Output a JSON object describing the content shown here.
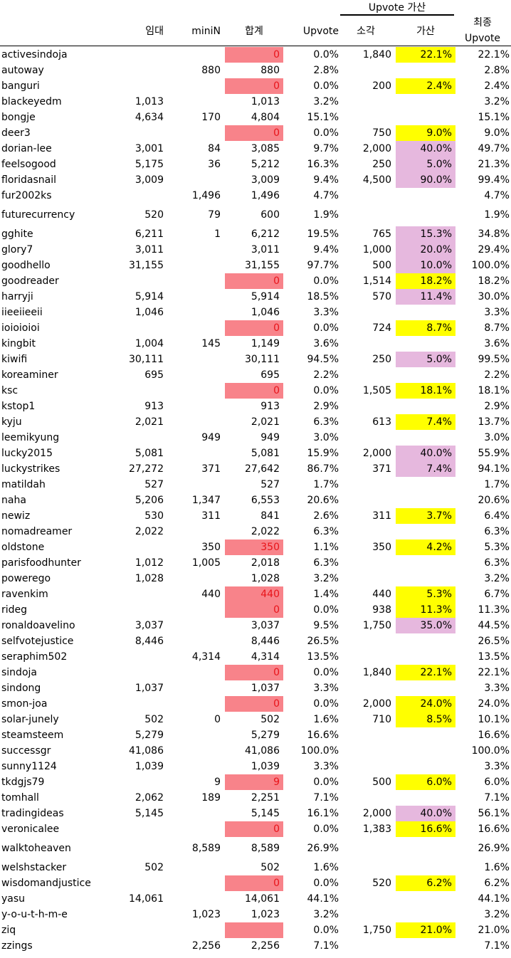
{
  "header": {
    "group_label": "Upvote 가산",
    "columns": {
      "imdae": "임대",
      "minin": "miniN",
      "total": "합계",
      "upvote": "Upvote",
      "sogak": "소각",
      "gasan": "가산",
      "final_line1": "최종",
      "final_line2": "Upvote"
    }
  },
  "colors": {
    "pink": "#f8838a",
    "pink_text": "#e8141a",
    "yellow": "#ffff00",
    "lavender": "#e6b8de"
  },
  "rows": [
    {
      "name": "activesindoja",
      "imdae": "",
      "minin": "",
      "total": "0",
      "upvote": "0.0%",
      "sogak": "1,840",
      "gasan": "22.1%",
      "final": "22.1%",
      "total_hl": "pink",
      "gasan_hl": "yellow"
    },
    {
      "name": "autoway",
      "imdae": "",
      "minin": "880",
      "total": "880",
      "upvote": "2.8%",
      "sogak": "",
      "gasan": "",
      "final": "2.8%",
      "total_hl": "",
      "gasan_hl": ""
    },
    {
      "name": "banguri",
      "imdae": "",
      "minin": "",
      "total": "0",
      "upvote": "0.0%",
      "sogak": "200",
      "gasan": "2.4%",
      "final": "2.4%",
      "total_hl": "pink",
      "gasan_hl": "yellow"
    },
    {
      "name": "blackeyedm",
      "imdae": "1,013",
      "minin": "",
      "total": "1,013",
      "upvote": "3.2%",
      "sogak": "",
      "gasan": "",
      "final": "3.2%",
      "total_hl": "",
      "gasan_hl": ""
    },
    {
      "name": "bongje",
      "imdae": "4,634",
      "minin": "170",
      "total": "4,804",
      "upvote": "15.1%",
      "sogak": "",
      "gasan": "",
      "final": "15.1%",
      "total_hl": "",
      "gasan_hl": ""
    },
    {
      "name": "deer3",
      "imdae": "",
      "minin": "",
      "total": "0",
      "upvote": "0.0%",
      "sogak": "750",
      "gasan": "9.0%",
      "final": "9.0%",
      "total_hl": "pink",
      "gasan_hl": "yellow"
    },
    {
      "name": "dorian-lee",
      "imdae": "3,001",
      "minin": "84",
      "total": "3,085",
      "upvote": "9.7%",
      "sogak": "2,000",
      "gasan": "40.0%",
      "final": "49.7%",
      "total_hl": "",
      "gasan_hl": "lavender"
    },
    {
      "name": "feelsogood",
      "imdae": "5,175",
      "minin": "36",
      "total": "5,212",
      "upvote": "16.3%",
      "sogak": "250",
      "gasan": "5.0%",
      "final": "21.3%",
      "total_hl": "",
      "gasan_hl": "lavender"
    },
    {
      "name": "floridasnail",
      "imdae": "3,009",
      "minin": "",
      "total": "3,009",
      "upvote": "9.4%",
      "sogak": "4,500",
      "gasan": "90.0%",
      "final": "99.4%",
      "total_hl": "",
      "gasan_hl": "lavender"
    },
    {
      "name": "fur2002ks",
      "imdae": "",
      "minin": "1,496",
      "total": "1,496",
      "upvote": "4.7%",
      "sogak": "",
      "gasan": "",
      "final": "4.7%",
      "total_hl": "",
      "gasan_hl": ""
    },
    {
      "name": "futurecurrency",
      "imdae": "520",
      "minin": "79",
      "total": "600",
      "upvote": "1.9%",
      "sogak": "",
      "gasan": "",
      "final": "1.9%",
      "total_hl": "",
      "gasan_hl": ""
    },
    {
      "name": "gghite",
      "imdae": "6,211",
      "minin": "1",
      "total": "6,212",
      "upvote": "19.5%",
      "sogak": "765",
      "gasan": "15.3%",
      "final": "34.8%",
      "total_hl": "",
      "gasan_hl": "lavender"
    },
    {
      "name": "glory7",
      "imdae": "3,011",
      "minin": "",
      "total": "3,011",
      "upvote": "9.4%",
      "sogak": "1,000",
      "gasan": "20.0%",
      "final": "29.4%",
      "total_hl": "",
      "gasan_hl": "lavender"
    },
    {
      "name": "goodhello",
      "imdae": "31,155",
      "minin": "",
      "total": "31,155",
      "upvote": "97.7%",
      "sogak": "500",
      "gasan": "10.0%",
      "final": "100.0%",
      "total_hl": "",
      "gasan_hl": "lavender"
    },
    {
      "name": "goodreader",
      "imdae": "",
      "minin": "",
      "total": "0",
      "upvote": "0.0%",
      "sogak": "1,514",
      "gasan": "18.2%",
      "final": "18.2%",
      "total_hl": "pink",
      "gasan_hl": "yellow"
    },
    {
      "name": "harryji",
      "imdae": "5,914",
      "minin": "",
      "total": "5,914",
      "upvote": "18.5%",
      "sogak": "570",
      "gasan": "11.4%",
      "final": "30.0%",
      "total_hl": "",
      "gasan_hl": "lavender"
    },
    {
      "name": "iieeiieeii",
      "imdae": "1,046",
      "minin": "",
      "total": "1,046",
      "upvote": "3.3%",
      "sogak": "",
      "gasan": "",
      "final": "3.3%",
      "total_hl": "",
      "gasan_hl": ""
    },
    {
      "name": "ioioioioi",
      "imdae": "",
      "minin": "",
      "total": "0",
      "upvote": "0.0%",
      "sogak": "724",
      "gasan": "8.7%",
      "final": "8.7%",
      "total_hl": "pink",
      "gasan_hl": "yellow"
    },
    {
      "name": "kingbit",
      "imdae": "1,004",
      "minin": "145",
      "total": "1,149",
      "upvote": "3.6%",
      "sogak": "",
      "gasan": "",
      "final": "3.6%",
      "total_hl": "",
      "gasan_hl": ""
    },
    {
      "name": "kiwifi",
      "imdae": "30,111",
      "minin": "",
      "total": "30,111",
      "upvote": "94.5%",
      "sogak": "250",
      "gasan": "5.0%",
      "final": "99.5%",
      "total_hl": "",
      "gasan_hl": "lavender"
    },
    {
      "name": "koreaminer",
      "imdae": "695",
      "minin": "",
      "total": "695",
      "upvote": "2.2%",
      "sogak": "",
      "gasan": "",
      "final": "2.2%",
      "total_hl": "",
      "gasan_hl": ""
    },
    {
      "name": "ksc",
      "imdae": "",
      "minin": "",
      "total": "0",
      "upvote": "0.0%",
      "sogak": "1,505",
      "gasan": "18.1%",
      "final": "18.1%",
      "total_hl": "pink",
      "gasan_hl": "yellow"
    },
    {
      "name": "kstop1",
      "imdae": "913",
      "minin": "",
      "total": "913",
      "upvote": "2.9%",
      "sogak": "",
      "gasan": "",
      "final": "2.9%",
      "total_hl": "",
      "gasan_hl": ""
    },
    {
      "name": "kyju",
      "imdae": "2,021",
      "minin": "",
      "total": "2,021",
      "upvote": "6.3%",
      "sogak": "613",
      "gasan": "7.4%",
      "final": "13.7%",
      "total_hl": "",
      "gasan_hl": "yellow"
    },
    {
      "name": "leemikyung",
      "imdae": "",
      "minin": "949",
      "total": "949",
      "upvote": "3.0%",
      "sogak": "",
      "gasan": "",
      "final": "3.0%",
      "total_hl": "",
      "gasan_hl": ""
    },
    {
      "name": "lucky2015",
      "imdae": "5,081",
      "minin": "",
      "total": "5,081",
      "upvote": "15.9%",
      "sogak": "2,000",
      "gasan": "40.0%",
      "final": "55.9%",
      "total_hl": "",
      "gasan_hl": "lavender"
    },
    {
      "name": "luckystrikes",
      "imdae": "27,272",
      "minin": "371",
      "total": "27,642",
      "upvote": "86.7%",
      "sogak": "371",
      "gasan": "7.4%",
      "final": "94.1%",
      "total_hl": "",
      "gasan_hl": "lavender"
    },
    {
      "name": "matildah",
      "imdae": "527",
      "minin": "",
      "total": "527",
      "upvote": "1.7%",
      "sogak": "",
      "gasan": "",
      "final": "1.7%",
      "total_hl": "",
      "gasan_hl": ""
    },
    {
      "name": "naha",
      "imdae": "5,206",
      "minin": "1,347",
      "total": "6,553",
      "upvote": "20.6%",
      "sogak": "",
      "gasan": "",
      "final": "20.6%",
      "total_hl": "",
      "gasan_hl": ""
    },
    {
      "name": "newiz",
      "imdae": "530",
      "minin": "311",
      "total": "841",
      "upvote": "2.6%",
      "sogak": "311",
      "gasan": "3.7%",
      "final": "6.4%",
      "total_hl": "",
      "gasan_hl": "yellow"
    },
    {
      "name": "nomadreamer",
      "imdae": "2,022",
      "minin": "",
      "total": "2,022",
      "upvote": "6.3%",
      "sogak": "",
      "gasan": "",
      "final": "6.3%",
      "total_hl": "",
      "gasan_hl": ""
    },
    {
      "name": "oldstone",
      "imdae": "",
      "minin": "350",
      "total": "350",
      "upvote": "1.1%",
      "sogak": "350",
      "gasan": "4.2%",
      "final": "5.3%",
      "total_hl": "pink",
      "gasan_hl": "yellow"
    },
    {
      "name": "parisfoodhunter",
      "imdae": "1,012",
      "minin": "1,005",
      "total": "2,018",
      "upvote": "6.3%",
      "sogak": "",
      "gasan": "",
      "final": "6.3%",
      "total_hl": "",
      "gasan_hl": ""
    },
    {
      "name": "powerego",
      "imdae": "1,028",
      "minin": "",
      "total": "1,028",
      "upvote": "3.2%",
      "sogak": "",
      "gasan": "",
      "final": "3.2%",
      "total_hl": "",
      "gasan_hl": ""
    },
    {
      "name": "ravenkim",
      "imdae": "",
      "minin": "440",
      "total": "440",
      "upvote": "1.4%",
      "sogak": "440",
      "gasan": "5.3%",
      "final": "6.7%",
      "total_hl": "pink",
      "gasan_hl": "yellow"
    },
    {
      "name": "rideg",
      "imdae": "",
      "minin": "",
      "total": "0",
      "upvote": "0.0%",
      "sogak": "938",
      "gasan": "11.3%",
      "final": "11.3%",
      "total_hl": "pink",
      "gasan_hl": "yellow"
    },
    {
      "name": "ronaldoavelino",
      "imdae": "3,037",
      "minin": "",
      "total": "3,037",
      "upvote": "9.5%",
      "sogak": "1,750",
      "gasan": "35.0%",
      "final": "44.5%",
      "total_hl": "",
      "gasan_hl": "lavender"
    },
    {
      "name": "selfvotejustice",
      "imdae": "8,446",
      "minin": "",
      "total": "8,446",
      "upvote": "26.5%",
      "sogak": "",
      "gasan": "",
      "final": "26.5%",
      "total_hl": "",
      "gasan_hl": ""
    },
    {
      "name": "seraphim502",
      "imdae": "",
      "minin": "4,314",
      "total": "4,314",
      "upvote": "13.5%",
      "sogak": "",
      "gasan": "",
      "final": "13.5%",
      "total_hl": "",
      "gasan_hl": ""
    },
    {
      "name": "sindoja",
      "imdae": "",
      "minin": "",
      "total": "0",
      "upvote": "0.0%",
      "sogak": "1,840",
      "gasan": "22.1%",
      "final": "22.1%",
      "total_hl": "pink",
      "gasan_hl": "yellow"
    },
    {
      "name": "sindong",
      "imdae": "1,037",
      "minin": "",
      "total": "1,037",
      "upvote": "3.3%",
      "sogak": "",
      "gasan": "",
      "final": "3.3%",
      "total_hl": "",
      "gasan_hl": ""
    },
    {
      "name": "smon-joa",
      "imdae": "",
      "minin": "",
      "total": "0",
      "upvote": "0.0%",
      "sogak": "2,000",
      "gasan": "24.0%",
      "final": "24.0%",
      "total_hl": "pink",
      "gasan_hl": "yellow"
    },
    {
      "name": "solar-junely",
      "imdae": "502",
      "minin": "0",
      "total": "502",
      "upvote": "1.6%",
      "sogak": "710",
      "gasan": "8.5%",
      "final": "10.1%",
      "total_hl": "",
      "gasan_hl": "yellow"
    },
    {
      "name": "steamsteem",
      "imdae": "5,279",
      "minin": "",
      "total": "5,279",
      "upvote": "16.6%",
      "sogak": "",
      "gasan": "",
      "final": "16.6%",
      "total_hl": "",
      "gasan_hl": ""
    },
    {
      "name": "successgr",
      "imdae": "41,086",
      "minin": "",
      "total": "41,086",
      "upvote": "100.0%",
      "sogak": "",
      "gasan": "",
      "final": "100.0%",
      "total_hl": "",
      "gasan_hl": ""
    },
    {
      "name": "sunny1124",
      "imdae": "1,039",
      "minin": "",
      "total": "1,039",
      "upvote": "3.3%",
      "sogak": "",
      "gasan": "",
      "final": "3.3%",
      "total_hl": "",
      "gasan_hl": ""
    },
    {
      "name": "tkdgjs79",
      "imdae": "",
      "minin": "9",
      "total": "9",
      "upvote": "0.0%",
      "sogak": "500",
      "gasan": "6.0%",
      "final": "6.0%",
      "total_hl": "pink",
      "gasan_hl": "yellow"
    },
    {
      "name": "tomhall",
      "imdae": "2,062",
      "minin": "189",
      "total": "2,251",
      "upvote": "7.1%",
      "sogak": "",
      "gasan": "",
      "final": "7.1%",
      "total_hl": "",
      "gasan_hl": ""
    },
    {
      "name": "tradingideas",
      "imdae": "5,145",
      "minin": "",
      "total": "5,145",
      "upvote": "16.1%",
      "sogak": "2,000",
      "gasan": "40.0%",
      "final": "56.1%",
      "total_hl": "",
      "gasan_hl": "lavender"
    },
    {
      "name": "veronicalee",
      "imdae": "",
      "minin": "",
      "total": "0",
      "upvote": "0.0%",
      "sogak": "1,383",
      "gasan": "16.6%",
      "final": "16.6%",
      "total_hl": "pink",
      "gasan_hl": "yellow"
    },
    {
      "name": "walktoheaven",
      "imdae": "",
      "minin": "8,589",
      "total": "8,589",
      "upvote": "26.9%",
      "sogak": "",
      "gasan": "",
      "final": "26.9%",
      "total_hl": "",
      "gasan_hl": ""
    },
    {
      "name": "welshstacker",
      "imdae": "502",
      "minin": "",
      "total": "502",
      "upvote": "1.6%",
      "sogak": "",
      "gasan": "",
      "final": "1.6%",
      "total_hl": "",
      "gasan_hl": ""
    },
    {
      "name": "wisdomandjustice",
      "imdae": "",
      "minin": "",
      "total": "0",
      "upvote": "0.0%",
      "sogak": "520",
      "gasan": "6.2%",
      "final": "6.2%",
      "total_hl": "pink",
      "gasan_hl": "yellow"
    },
    {
      "name": "yasu",
      "imdae": "14,061",
      "minin": "",
      "total": "14,061",
      "upvote": "44.1%",
      "sogak": "",
      "gasan": "",
      "final": "44.1%",
      "total_hl": "",
      "gasan_hl": ""
    },
    {
      "name": "y-o-u-t-h-m-e",
      "imdae": "",
      "minin": "1,023",
      "total": "1,023",
      "upvote": "3.2%",
      "sogak": "",
      "gasan": "",
      "final": "3.2%",
      "total_hl": "",
      "gasan_hl": ""
    },
    {
      "name": "ziq",
      "imdae": "",
      "minin": "",
      "total": "",
      "upvote": "0.0%",
      "sogak": "1,750",
      "gasan": "21.0%",
      "final": "21.0%",
      "total_hl": "pink",
      "gasan_hl": "yellow"
    },
    {
      "name": "zzings",
      "imdae": "",
      "minin": "2,256",
      "total": "2,256",
      "upvote": "7.1%",
      "sogak": "",
      "gasan": "",
      "final": "7.1%",
      "total_hl": "",
      "gasan_hl": ""
    }
  ]
}
